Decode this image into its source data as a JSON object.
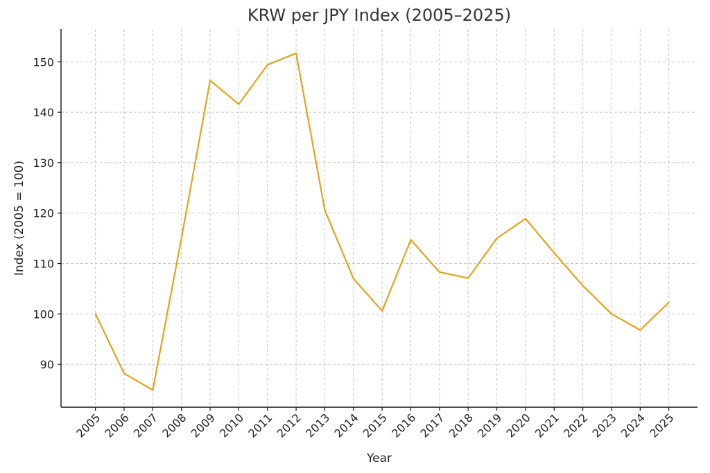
{
  "chart_data": {
    "type": "line",
    "title": "KRW per JPY Index (2005–2025)",
    "xlabel": "Year",
    "ylabel": "Index (2005 = 100)",
    "grid": true,
    "legend": "none",
    "xlim": [
      2003.8,
      2026.0
    ],
    "ylim": [
      81.5,
      156.5
    ],
    "x": [
      2005,
      2006,
      2007,
      2008,
      2009,
      2010,
      2011,
      2012,
      2013,
      2014,
      2015,
      2016,
      2017,
      2018,
      2019,
      2020,
      2021,
      2022,
      2023,
      2024,
      2025
    ],
    "x_tick_labels": [
      "2005",
      "2006",
      "2007",
      "2008",
      "2009",
      "2010",
      "2011",
      "2012",
      "2013",
      "2014",
      "2015",
      "2016",
      "2017",
      "2018",
      "2019",
      "2020",
      "2021",
      "2022",
      "2023",
      "2024",
      "2025"
    ],
    "y_ticks": [
      90,
      100,
      110,
      120,
      130,
      140,
      150
    ],
    "y_tick_labels": [
      "90",
      "100",
      "110",
      "120",
      "130",
      "140",
      "150"
    ],
    "series": [
      {
        "name": "KRW per JPY Index",
        "color": "#e3a21a",
        "values": [
          100.0,
          88.2,
          84.9,
          115.0,
          146.3,
          141.6,
          149.4,
          151.7,
          120.6,
          107.0,
          100.6,
          114.7,
          108.3,
          107.1,
          115.0,
          118.9,
          112.1,
          105.6,
          100.0,
          96.8,
          102.3
        ]
      }
    ]
  }
}
